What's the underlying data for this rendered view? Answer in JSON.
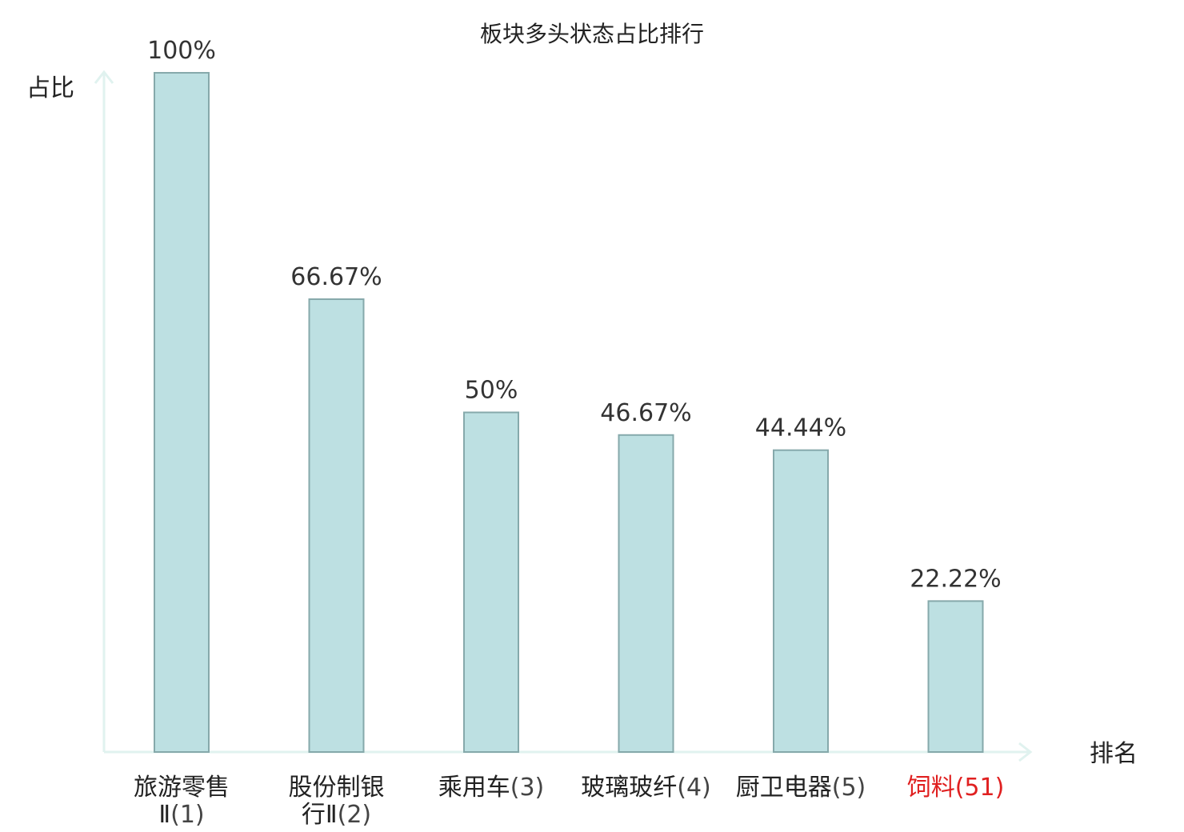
{
  "chart_data": {
    "type": "bar",
    "title": "板块多头状态占比排行",
    "ylabel": "占比",
    "xlabel": "排名",
    "ylim": [
      0,
      100
    ],
    "grid": false,
    "legend": "none",
    "categories": [
      {
        "name": [
          "旅游零售",
          "Ⅱ"
        ],
        "rank": "(1)",
        "highlight": false
      },
      {
        "name": [
          "股份制银",
          "行Ⅱ"
        ],
        "rank": "(2)",
        "highlight": false
      },
      {
        "name": [
          "乘用车"
        ],
        "rank": "(3)",
        "highlight": false
      },
      {
        "name": [
          "玻璃玻纤"
        ],
        "rank": "(4)",
        "highlight": false
      },
      {
        "name": [
          "厨卫电器"
        ],
        "rank": "(5)",
        "highlight": false
      },
      {
        "name": [
          "饲料"
        ],
        "rank": "(51)",
        "highlight": true
      }
    ],
    "values": [
      100,
      66.67,
      50,
      46.67,
      44.44,
      22.22
    ],
    "value_labels": [
      "100%",
      "66.67%",
      "50%",
      "46.67%",
      "44.44%",
      "22.22%"
    ]
  },
  "colors": {
    "bar_fill": "#bde0e2",
    "bar_stroke": "#86a9ab",
    "axis": "#e0f2ef",
    "highlight": "#e02020"
  }
}
